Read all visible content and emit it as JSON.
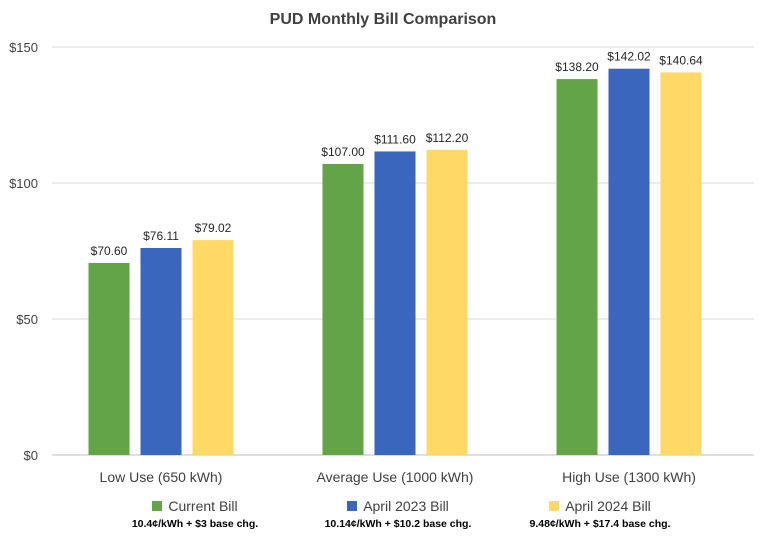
{
  "chart_data": {
    "type": "bar",
    "title": "PUD Monthly Bill Comparison",
    "categories": [
      "Low Use (650 kWh)",
      "Average Use (1000 kWh)",
      "High Use (1300 kWh)"
    ],
    "series": [
      {
        "name": "Current Bill",
        "values": [
          70.6,
          107.0,
          138.2
        ],
        "labels": [
          "$70.60",
          "$107.00",
          "$138.20"
        ],
        "color": "#62a447",
        "note": "10.4¢/kWh + $3 base chg."
      },
      {
        "name": "April 2023 Bill",
        "values": [
          76.11,
          111.6,
          142.02
        ],
        "labels": [
          "$76.11",
          "$111.60",
          "$142.02"
        ],
        "color": "#3a66bd",
        "note": "10.14¢/kWh + $10.2  base chg."
      },
      {
        "name": "April 2024 Bill",
        "values": [
          79.02,
          112.2,
          140.64
        ],
        "labels": [
          "$79.02",
          "$112.20",
          "$140.64"
        ],
        "color": "#ffd966",
        "note": "9.48¢/kWh + $17.4 base chg."
      }
    ],
    "ylim": [
      0,
      150
    ],
    "yticks": [
      0,
      50,
      100,
      150
    ],
    "ytick_labels": [
      "$0",
      "$50",
      "$100",
      "$150"
    ],
    "xlabel": "",
    "ylabel": "",
    "grid": true,
    "legend": "bottom"
  }
}
